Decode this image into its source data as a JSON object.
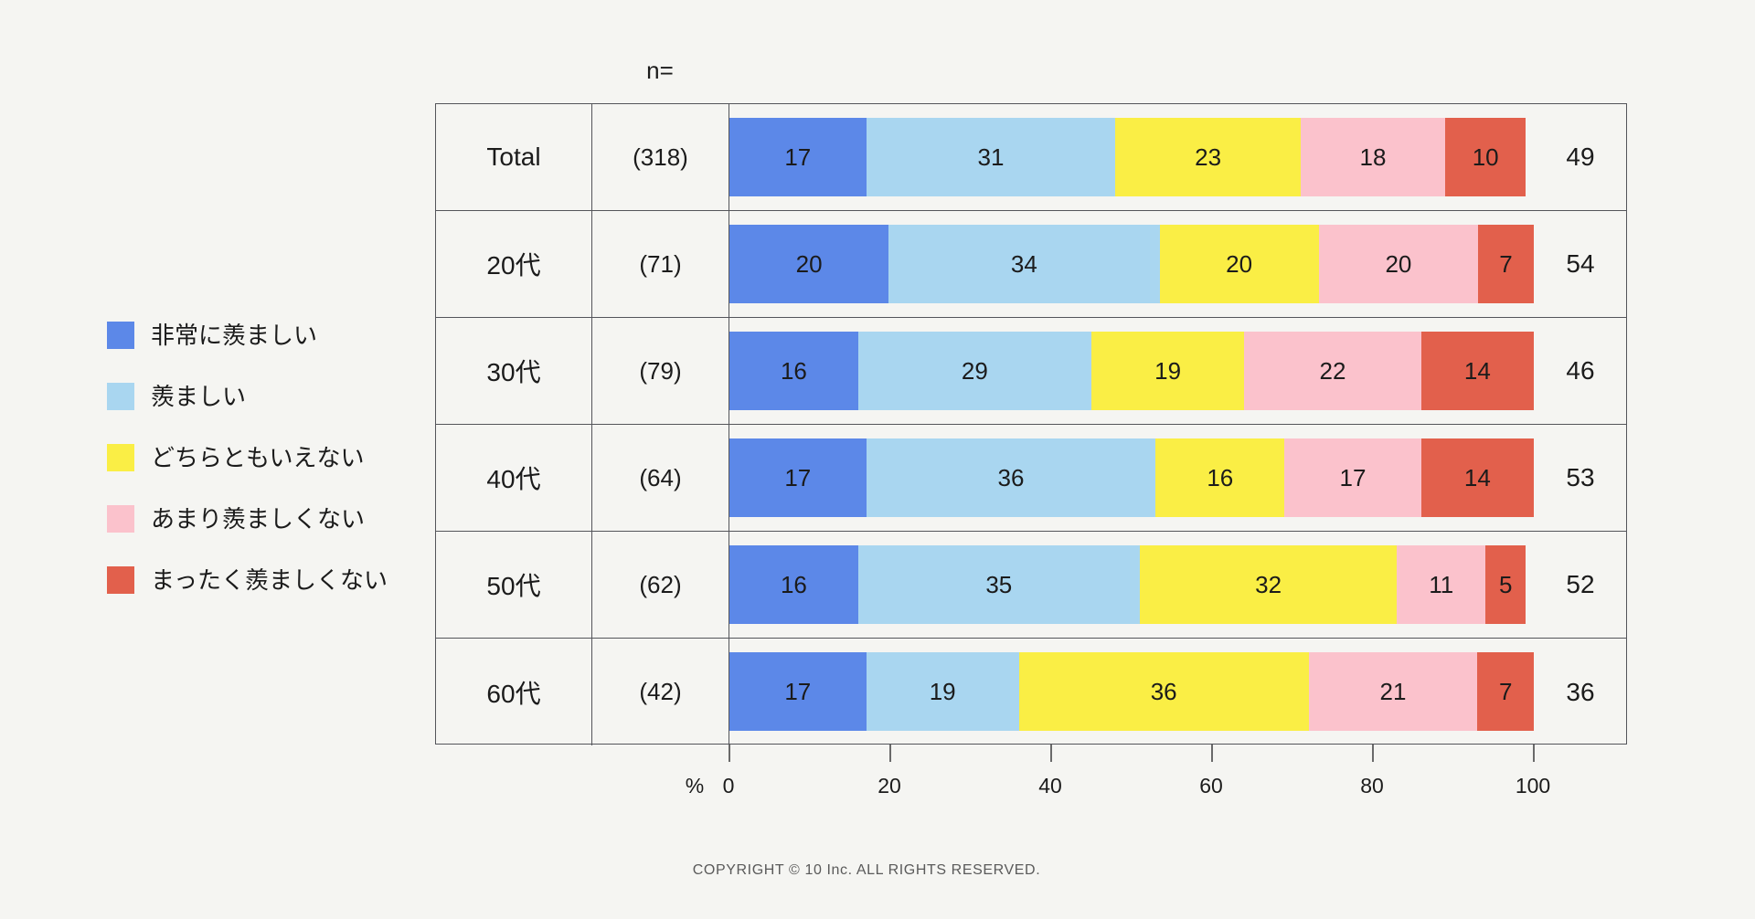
{
  "page": {
    "background": "#F5F5F2"
  },
  "header": {
    "n_label": "n="
  },
  "axis": {
    "percent_label": "%"
  },
  "footer": {
    "copyright": "COPYRIGHT © 10 Inc. ALL RIGHTS RESERVED."
  },
  "chart_data": {
    "type": "bar",
    "stacked": true,
    "orientation": "horizontal",
    "title": "",
    "xlabel": "%",
    "ylabel": "",
    "xlim": [
      0,
      100
    ],
    "x_ticks": [
      0,
      20,
      40,
      60,
      80,
      100
    ],
    "grid": false,
    "legend_position": "left",
    "n_header": "n=",
    "categories": [
      "Total",
      "20代",
      "30代",
      "40代",
      "50代",
      "60代"
    ],
    "n_values": [
      "(318)",
      "(71)",
      "(79)",
      "(64)",
      "(62)",
      "(42)"
    ],
    "series": [
      {
        "name": "非常に羨ましい",
        "color": "#5C88E8",
        "values": [
          17,
          20,
          16,
          17,
          16,
          17
        ]
      },
      {
        "name": "羨ましい",
        "color": "#A9D6F0",
        "values": [
          31,
          34,
          29,
          36,
          35,
          19
        ]
      },
      {
        "name": "どちらともいえない",
        "color": "#FAEE45",
        "values": [
          23,
          20,
          19,
          16,
          32,
          36
        ]
      },
      {
        "name": "あまり羨ましくない",
        "color": "#FBC2CC",
        "values": [
          18,
          20,
          22,
          17,
          11,
          21
        ]
      },
      {
        "name": "まったく羨ましくない",
        "color": "#E2604C",
        "values": [
          10,
          7,
          14,
          14,
          5,
          7
        ]
      }
    ],
    "totals": [
      49,
      54,
      46,
      53,
      52,
      36
    ],
    "text_color": "#1b1b1b",
    "border_color": "#54555a"
  }
}
